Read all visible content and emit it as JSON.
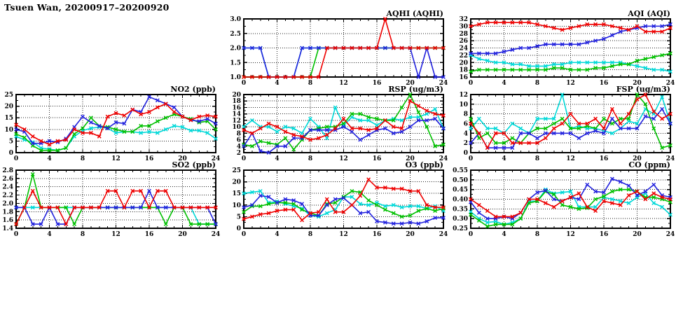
{
  "page": {
    "title": "Tsuen Wan, 20200917–20200920"
  },
  "colors": {
    "red": "#ee0000",
    "green": "#00c000",
    "blue": "#2222dd",
    "cyan": "#00d8d8"
  },
  "chart_data": [
    {
      "id": "aqhi",
      "type": "line",
      "title": "AQHI (AQHI)",
      "xlabel": "",
      "ylabel": "AQHI",
      "x_range": [
        0,
        24
      ],
      "x_major_step": 4,
      "x_minor_step": 1,
      "ylim": [
        1.0,
        3.0
      ],
      "ytick_step": 0.5,
      "y_decimals": 1,
      "grid": true,
      "legend": "none",
      "x": "hours 0-24",
      "series": [
        {
          "name": "cyan",
          "values": [
            2,
            2,
            2,
            1,
            1,
            1,
            1,
            2,
            2,
            2,
            2,
            2,
            2,
            2,
            2,
            2,
            2,
            2,
            2,
            2,
            2,
            2,
            2,
            2,
            2
          ]
        },
        {
          "name": "green",
          "values": [
            1,
            1,
            1,
            1,
            1,
            1,
            1,
            1,
            1,
            2,
            2,
            2,
            2,
            2,
            2,
            2,
            2,
            2,
            2,
            2,
            2,
            2,
            2,
            2,
            2
          ]
        },
        {
          "name": "blue",
          "values": [
            2,
            2,
            2,
            1,
            1,
            1,
            1,
            2,
            2,
            2,
            2,
            2,
            2,
            2,
            2,
            2,
            2,
            2,
            2,
            2,
            2,
            1,
            2,
            1,
            1
          ]
        },
        {
          "name": "red",
          "values": [
            1,
            1,
            1,
            1,
            1,
            1,
            1,
            1,
            1,
            1,
            2,
            2,
            2,
            2,
            2,
            2,
            2,
            3,
            2,
            2,
            2,
            2,
            2,
            2,
            2
          ]
        }
      ]
    },
    {
      "id": "aqi",
      "type": "line",
      "title": "AQI (AQI)",
      "xlabel": "",
      "ylabel": "AQI",
      "x_range": [
        0,
        24
      ],
      "x_major_step": 4,
      "x_minor_step": 1,
      "ylim": [
        16,
        32
      ],
      "ytick_step": 2,
      "y_decimals": 0,
      "grid": true,
      "legend": "none",
      "x": "hours 0-24",
      "series": [
        {
          "name": "cyan",
          "values": [
            22,
            21,
            20.5,
            20,
            20,
            19.5,
            19.5,
            19,
            19,
            19,
            19.5,
            19.5,
            20,
            20,
            20,
            20,
            20,
            20,
            20,
            19.5,
            19,
            18.5,
            18,
            18,
            17.5
          ]
        },
        {
          "name": "green",
          "values": [
            17.5,
            18,
            18,
            18,
            18,
            18,
            18,
            18,
            18,
            18,
            18.5,
            18.5,
            18,
            18,
            18,
            18.5,
            18.5,
            19,
            19.5,
            19.5,
            20.5,
            21,
            21.5,
            22,
            22.5
          ]
        },
        {
          "name": "blue",
          "values": [
            22.5,
            22.5,
            22.5,
            22.5,
            23,
            23.5,
            24,
            24,
            24.5,
            25,
            25,
            25,
            25,
            25,
            25.5,
            26,
            26.5,
            27.5,
            28.5,
            29,
            29.5,
            30,
            30,
            30,
            30.5
          ]
        },
        {
          "name": "red",
          "values": [
            30,
            30.5,
            31,
            31,
            31,
            31,
            31,
            31,
            30.5,
            30,
            29.5,
            29,
            29.5,
            30,
            30.5,
            30.5,
            30.5,
            30,
            29.5,
            29,
            30,
            28.5,
            28.5,
            28.5,
            29.5
          ]
        }
      ]
    },
    {
      "id": "no2",
      "type": "line",
      "title": "NO2 (ppb)",
      "xlabel": "",
      "ylabel": "NO2 ppb",
      "x_range": [
        0,
        24
      ],
      "x_major_step": 4,
      "x_minor_step": 1,
      "ylim": [
        0,
        25
      ],
      "ytick_step": 5,
      "y_decimals": 0,
      "grid": true,
      "legend": "none",
      "x": "hours 0-24",
      "series": [
        {
          "name": "cyan",
          "values": [
            7,
            5.5,
            4.5,
            2,
            1.5,
            1,
            2,
            7,
            9.5,
            10.5,
            11,
            10.5,
            8.5,
            9,
            9,
            8.5,
            9,
            8.5,
            10,
            11.5,
            11,
            9.5,
            9.5,
            8.5,
            6
          ]
        },
        {
          "name": "green",
          "values": [
            8,
            6.5,
            3,
            1,
            1,
            1,
            2,
            8,
            10.5,
            15,
            11.5,
            11,
            10,
            9,
            9,
            11.5,
            11.5,
            13.5,
            15,
            16.5,
            15.5,
            14.5,
            13,
            13.5,
            10
          ]
        },
        {
          "name": "blue",
          "values": [
            10,
            9,
            4,
            4,
            5,
            4.5,
            6,
            11,
            15.5,
            13,
            11.5,
            10.5,
            13,
            12.5,
            18.5,
            17.5,
            24,
            22.5,
            21,
            19.5,
            15.5,
            14,
            13.5,
            14.5,
            12.5
          ]
        },
        {
          "name": "red",
          "values": [
            12,
            10,
            7,
            5,
            3.5,
            5,
            5.5,
            10,
            8.5,
            8.5,
            7,
            15.5,
            17,
            16,
            18.5,
            16.5,
            17.5,
            19.5,
            21,
            17.5,
            15.5,
            14,
            15.5,
            16,
            15.5
          ]
        }
      ]
    },
    {
      "id": "rsp",
      "type": "line",
      "title": "RSP (ug/m3)",
      "xlabel": "",
      "ylabel": "RSP ug/m3",
      "x_range": [
        0,
        24
      ],
      "x_major_step": 4,
      "x_minor_step": 1,
      "ylim": [
        2,
        20
      ],
      "ytick_step": 2,
      "y_decimals": 0,
      "grid": true,
      "legend": "none",
      "x": "hours 0-24",
      "series": [
        {
          "name": "cyan",
          "values": [
            10,
            12,
            10,
            10,
            8.5,
            10,
            9.5,
            8,
            12.5,
            10,
            6.5,
            16,
            10.5,
            13,
            12,
            12,
            10.5,
            12,
            12.5,
            12,
            13,
            13,
            14,
            15.5,
            9.5
          ]
        },
        {
          "name": "green",
          "values": [
            4.5,
            4,
            5.5,
            5,
            4.5,
            6.5,
            3,
            6,
            9,
            9.5,
            10,
            10,
            11,
            14,
            14,
            13,
            12.5,
            12,
            12,
            16,
            20,
            14.5,
            10,
            4,
            4.5
          ]
        },
        {
          "name": "blue",
          "values": [
            4,
            8,
            2.5,
            2,
            4,
            4,
            6.5,
            6.5,
            9,
            9,
            9,
            9,
            10,
            8.5,
            6,
            7.5,
            9,
            9.5,
            8,
            8.5,
            10,
            12,
            12,
            12.5,
            9.5
          ]
        },
        {
          "name": "red",
          "values": [
            9,
            8,
            9.5,
            11,
            10,
            8.5,
            7.5,
            7,
            6,
            6.5,
            7.5,
            9.5,
            12.5,
            9.5,
            9.5,
            9,
            9.5,
            12,
            10,
            9.5,
            18,
            16.5,
            15,
            14,
            13.5
          ]
        }
      ]
    },
    {
      "id": "fsp",
      "type": "line",
      "title": "FSP (ug/m3)",
      "xlabel": "",
      "ylabel": "FSP ug/m3",
      "x_range": [
        0,
        24
      ],
      "x_major_step": 4,
      "x_minor_step": 1,
      "ylim": [
        0,
        12
      ],
      "ytick_step": 2,
      "y_decimals": 0,
      "grid": true,
      "legend": "none",
      "x": "hours 0-24",
      "series": [
        {
          "name": "cyan",
          "values": [
            5,
            7,
            5,
            5,
            4,
            6,
            5,
            4,
            7,
            7,
            7,
            12,
            5,
            5.5,
            5,
            5,
            4.5,
            4,
            5,
            6.5,
            6,
            9,
            8,
            11.5,
            6
          ]
        },
        {
          "name": "green",
          "values": [
            7,
            3,
            4,
            2,
            2,
            3,
            2,
            4,
            5,
            5,
            6,
            7,
            5,
            5,
            5.5,
            5,
            7,
            6,
            7,
            7,
            12,
            10,
            5,
            1,
            1.5
          ]
        },
        {
          "name": "blue",
          "values": [
            2,
            4,
            1,
            1,
            1,
            1,
            4,
            4,
            3,
            4,
            4,
            4,
            4,
            3,
            4,
            4.5,
            4,
            7,
            5,
            5,
            5,
            7.5,
            7,
            9,
            6
          ]
        },
        {
          "name": "red",
          "values": [
            6,
            4,
            1,
            4,
            4,
            2,
            2,
            2,
            2,
            3,
            5,
            6,
            8,
            6,
            6,
            7,
            5,
            9,
            6,
            8,
            11,
            12,
            8.5,
            7,
            8
          ]
        }
      ]
    },
    {
      "id": "so2",
      "type": "line",
      "title": "SO2 (ppb)",
      "xlabel": "",
      "ylabel": "SO2 ppb",
      "x_range": [
        0,
        24
      ],
      "x_major_step": 4,
      "x_minor_step": 1,
      "ylim": [
        1.4,
        2.8
      ],
      "ytick_step": 0.2,
      "y_decimals": 1,
      "grid": true,
      "legend": "none",
      "x": "hours 0-24",
      "series": [
        {
          "name": "cyan",
          "values": [
            1.9,
            1.9,
            1.9,
            1.9,
            1.9,
            1.9,
            1.9,
            1.9,
            1.9,
            1.9,
            1.9,
            1.9,
            1.9,
            1.9,
            1.9,
            1.9,
            1.9,
            1.9,
            1.9,
            1.9,
            1.9,
            1.9,
            1.5,
            1.5,
            1.5
          ]
        },
        {
          "name": "green",
          "values": [
            1.5,
            1.9,
            2.7,
            1.9,
            1.9,
            1.9,
            1.9,
            1.5,
            1.9,
            1.9,
            1.9,
            1.9,
            1.9,
            1.9,
            1.9,
            1.9,
            1.9,
            1.9,
            1.5,
            1.9,
            1.9,
            1.5,
            1.5,
            1.5,
            1.5
          ]
        },
        {
          "name": "blue",
          "values": [
            1.9,
            1.9,
            1.5,
            1.5,
            1.9,
            1.5,
            1.5,
            1.9,
            1.9,
            1.9,
            1.9,
            1.9,
            1.9,
            1.9,
            1.9,
            1.9,
            2.3,
            1.9,
            1.9,
            1.9,
            1.9,
            1.9,
            1.9,
            1.9,
            1.5
          ]
        },
        {
          "name": "red",
          "values": [
            1.5,
            1.9,
            2.3,
            1.9,
            1.9,
            1.9,
            1.5,
            1.9,
            1.9,
            1.9,
            1.9,
            2.3,
            2.3,
            1.9,
            2.3,
            2.3,
            1.9,
            2.3,
            2.3,
            1.9,
            1.9,
            1.9,
            1.9,
            1.9,
            1.9
          ]
        }
      ]
    },
    {
      "id": "o3",
      "type": "line",
      "title": "O3 (ppb)",
      "xlabel": "",
      "ylabel": "O3 ppb",
      "x_range": [
        0,
        24
      ],
      "x_major_step": 4,
      "x_minor_step": 1,
      "ylim": [
        0,
        25
      ],
      "ytick_step": 5,
      "y_decimals": 0,
      "grid": true,
      "legend": "none",
      "x": "hours 0-24",
      "series": [
        {
          "name": "cyan",
          "values": [
            15,
            15.5,
            16,
            11,
            11.5,
            10.5,
            9.5,
            8.5,
            5.5,
            5,
            6.5,
            8,
            13.5,
            13.5,
            10.5,
            10,
            11,
            9.5,
            10,
            9,
            9.5,
            9.5,
            8.5,
            9.5,
            7.5
          ]
        },
        {
          "name": "green",
          "values": [
            7,
            9.5,
            9.5,
            10.5,
            11,
            11,
            10.5,
            8,
            6.5,
            5.5,
            10.5,
            11,
            13.5,
            16,
            15.5,
            12,
            10,
            8,
            6.5,
            5,
            5.5,
            7.5,
            8.5,
            7.5,
            8.5
          ]
        },
        {
          "name": "blue",
          "values": [
            9,
            10,
            14,
            13.5,
            11,
            12.5,
            12,
            10.5,
            5.5,
            5.5,
            10,
            12.5,
            13,
            10,
            6.5,
            7,
            3,
            2.5,
            2,
            2,
            2.5,
            2,
            3,
            4.5,
            4.5
          ]
        },
        {
          "name": "red",
          "values": [
            4,
            5,
            6,
            6.5,
            7.5,
            8,
            8,
            3.5,
            6.5,
            7,
            12.5,
            7,
            7,
            10,
            14,
            21,
            17.5,
            17.5,
            17,
            17,
            16,
            16,
            10,
            9,
            9
          ]
        }
      ]
    },
    {
      "id": "co",
      "type": "line",
      "title": "CO (ppm)",
      "xlabel": "",
      "ylabel": "CO ppm",
      "x_range": [
        0,
        24
      ],
      "x_major_step": 4,
      "x_minor_step": 1,
      "ylim": [
        0.25,
        0.55
      ],
      "ytick_step": 0.05,
      "y_decimals": 2,
      "grid": true,
      "legend": "none",
      "x": "hours 0-24",
      "series": [
        {
          "name": "cyan",
          "values": [
            0.335,
            0.3,
            0.28,
            0.285,
            0.27,
            0.28,
            0.3,
            0.39,
            0.39,
            0.45,
            0.43,
            0.435,
            0.44,
            0.36,
            0.36,
            0.36,
            0.41,
            0.4,
            0.39,
            0.38,
            0.41,
            0.43,
            0.38,
            0.36,
            0.32
          ]
        },
        {
          "name": "green",
          "values": [
            0.32,
            0.29,
            0.26,
            0.27,
            0.27,
            0.27,
            0.3,
            0.38,
            0.39,
            0.44,
            0.425,
            0.37,
            0.36,
            0.35,
            0.355,
            0.4,
            0.415,
            0.44,
            0.45,
            0.45,
            0.44,
            0.41,
            0.41,
            0.4,
            0.385
          ]
        },
        {
          "name": "blue",
          "values": [
            0.385,
            0.33,
            0.3,
            0.3,
            0.31,
            0.3,
            0.33,
            0.4,
            0.435,
            0.445,
            0.4,
            0.39,
            0.41,
            0.4,
            0.475,
            0.44,
            0.435,
            0.505,
            0.49,
            0.47,
            0.42,
            0.44,
            0.475,
            0.42,
            0.41
          ]
        },
        {
          "name": "red",
          "values": [
            0.4,
            0.37,
            0.34,
            0.31,
            0.31,
            0.31,
            0.33,
            0.4,
            0.4,
            0.38,
            0.36,
            0.39,
            0.41,
            0.43,
            0.36,
            0.34,
            0.39,
            0.38,
            0.37,
            0.42,
            0.44,
            0.4,
            0.43,
            0.41,
            0.4
          ]
        }
      ]
    }
  ]
}
